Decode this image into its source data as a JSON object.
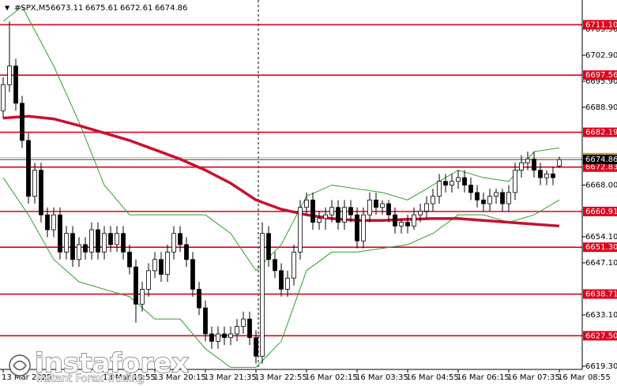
{
  "chart_data": {
    "type": "candlestick",
    "header": {
      "symbol": "#SPX,M5",
      "ohlc": [
        "6673.11",
        "6675.61",
        "6672.61",
        "6674.86"
      ]
    },
    "watermark": {
      "brand": "instaforex",
      "tagline": "Instant Forex Trading"
    },
    "categories": [
      "13 Mar 2025",
      null,
      null,
      null,
      null,
      null,
      null,
      null,
      null,
      null,
      null,
      null,
      null,
      null,
      null,
      null,
      "13 Mar 18:55",
      null,
      null,
      null,
      null,
      null,
      null,
      null,
      "13 Mar 20:15",
      null,
      null,
      null,
      null,
      null,
      null,
      null,
      "13 Mar 21:35",
      null,
      null,
      null,
      null,
      null,
      null,
      null,
      "13 Mar 22:55",
      null,
      null,
      null,
      null,
      null,
      null,
      null,
      "16 Mar 02:15",
      null,
      null,
      null,
      null,
      null,
      null,
      null,
      "16 Mar 03:35",
      null,
      null,
      null,
      null,
      null,
      null,
      null,
      "16 Mar 04:55",
      null,
      null,
      null,
      null,
      null,
      null,
      null,
      "16 Mar 06:15",
      null,
      null,
      null,
      null,
      null,
      null,
      null,
      "16 Mar 07:35",
      null,
      null,
      null,
      null,
      null,
      null,
      null,
      "16 Mar 08:55"
    ],
    "candles": [
      [
        6688,
        6697,
        6686,
        6695
      ],
      [
        6695,
        6712,
        6693,
        6700
      ],
      [
        6700,
        6702,
        6688,
        6690
      ],
      [
        6690,
        6692,
        6678,
        6680
      ],
      [
        6680,
        6682,
        6663,
        6665
      ],
      [
        6665,
        6674,
        6663,
        6672
      ],
      [
        6672,
        6674,
        6658,
        6660
      ],
      [
        6660,
        6662,
        6654,
        6656
      ],
      [
        6656,
        6662,
        6654,
        6660
      ],
      [
        6660,
        6662,
        6648,
        6650
      ],
      [
        6650,
        6657,
        6648,
        6655
      ],
      [
        6655,
        6657,
        6646,
        6648
      ],
      [
        6648,
        6654,
        6646,
        6652
      ],
      [
        6652,
        6654,
        6648,
        6650
      ],
      [
        6650,
        6658,
        6648,
        6656
      ],
      [
        6656,
        6658,
        6648,
        6650
      ],
      [
        6650,
        6657,
        6648,
        6655
      ],
      [
        6655,
        6657,
        6650,
        6652
      ],
      [
        6652,
        6657,
        6650,
        6655
      ],
      [
        6655,
        6657,
        6648,
        6650
      ],
      [
        6650,
        6652,
        6644,
        6646
      ],
      [
        6646,
        6648,
        6631,
        6636
      ],
      [
        6636,
        6642,
        6634,
        6640
      ],
      [
        6640,
        6647,
        6638,
        6645
      ],
      [
        6645,
        6650,
        6643,
        6648
      ],
      [
        6648,
        6650,
        6642,
        6644
      ],
      [
        6644,
        6652,
        6642,
        6650
      ],
      [
        6650,
        6657,
        6648,
        6655
      ],
      [
        6655,
        6657,
        6650,
        6652
      ],
      [
        6652,
        6654,
        6646,
        6648
      ],
      [
        6648,
        6650,
        6638,
        6640
      ],
      [
        6640,
        6642,
        6633,
        6635
      ],
      [
        6635,
        6637,
        6626,
        6628
      ],
      [
        6628,
        6630,
        6624,
        6626
      ],
      [
        6626,
        6630,
        6624,
        6628
      ],
      [
        6628,
        6630,
        6625,
        6627
      ],
      [
        6627,
        6630,
        6625,
        6628
      ],
      [
        6628,
        6632,
        6626,
        6630
      ],
      [
        6630,
        6634,
        6628,
        6632
      ],
      [
        6632,
        6634,
        6625,
        6627
      ],
      [
        6627,
        6629,
        6620,
        6622
      ],
      [
        6622,
        6658,
        6620,
        6655
      ],
      [
        6655,
        6657,
        6646,
        6648
      ],
      [
        6648,
        6650,
        6643,
        6645
      ],
      [
        6645,
        6647,
        6638,
        6640
      ],
      [
        6640,
        6645,
        6638,
        6643
      ],
      [
        6643,
        6652,
        6641,
        6650
      ],
      [
        6650,
        6664,
        6648,
        6662
      ],
      [
        6662,
        6666,
        6660,
        6664
      ],
      [
        6664,
        6666,
        6656,
        6658
      ],
      [
        6658,
        6661,
        6656,
        6659
      ],
      [
        6659,
        6662,
        6656,
        6660
      ],
      [
        6660,
        6664,
        6658,
        6662
      ],
      [
        6662,
        6664,
        6656,
        6658
      ],
      [
        6658,
        6664,
        6656,
        6662
      ],
      [
        6662,
        6664,
        6658,
        6660
      ],
      [
        6660,
        6662,
        6651,
        6653
      ],
      [
        6653,
        6662,
        6651,
        6660
      ],
      [
        6660,
        6666,
        6658,
        6664
      ],
      [
        6664,
        6666,
        6660,
        6662
      ],
      [
        6662,
        6664,
        6660,
        6663
      ],
      [
        6663,
        6664,
        6658,
        6660
      ],
      [
        6660,
        6662,
        6655,
        6657
      ],
      [
        6657,
        6659,
        6655,
        6658
      ],
      [
        6658,
        6660,
        6655,
        6657
      ],
      [
        6657,
        6662,
        6656,
        6660
      ],
      [
        6660,
        6663,
        6658,
        6661
      ],
      [
        6661,
        6665,
        6659,
        6663
      ],
      [
        6663,
        6667,
        6661,
        6665
      ],
      [
        6665,
        6671,
        6663,
        6669
      ],
      [
        6669,
        6671,
        6666,
        6668
      ],
      [
        6668,
        6671,
        6666,
        6669
      ],
      [
        6669,
        6672,
        6667,
        6670
      ],
      [
        6670,
        6672,
        6666,
        6668
      ],
      [
        6668,
        6670,
        6664,
        6666
      ],
      [
        6666,
        6668,
        6662,
        6664
      ],
      [
        6664,
        6666,
        6661,
        6663
      ],
      [
        6663,
        6667,
        6661,
        6665
      ],
      [
        6665,
        6667,
        6663,
        6666
      ],
      [
        6666,
        6667,
        6661,
        6663
      ],
      [
        6663,
        6668,
        6661,
        6666
      ],
      [
        6666,
        6674,
        6664,
        6672
      ],
      [
        6672,
        6676,
        6670,
        6674
      ],
      [
        6674,
        6677,
        6672,
        6675
      ],
      [
        6675,
        6677,
        6670,
        6672
      ],
      [
        6672,
        6674,
        6668,
        6670
      ],
      [
        6670,
        6672,
        6668,
        6671
      ],
      [
        6671,
        6673,
        6668,
        6670
      ],
      [
        6673.11,
        6675.61,
        6672.61,
        6674.86
      ]
    ],
    "up_color": "#ffffff",
    "down_color": "#000000",
    "wick_color": "#000000",
    "indicators": [
      {
        "color": "#2e9e2e",
        "width": 1,
        "x": [
          0,
          3,
          8,
          12,
          16,
          20,
          24,
          28,
          32,
          36,
          40,
          44,
          48,
          52,
          56,
          60,
          64,
          68,
          72,
          76,
          80,
          84,
          88
        ],
        "values": [
          6712,
          6716,
          6700,
          6685,
          6668,
          6660,
          6660,
          6660,
          6660,
          6655,
          6645,
          6652,
          6665,
          6668,
          6667,
          6666,
          6664,
          6668,
          6672,
          6670,
          6669,
          6677,
          6678
        ]
      },
      {
        "color": "#2e9e2e",
        "width": 1,
        "x": [
          0,
          4,
          8,
          12,
          16,
          20,
          24,
          28,
          32,
          36,
          40,
          44,
          48,
          52,
          56,
          60,
          64,
          68,
          72,
          76,
          80,
          84,
          88
        ],
        "values": [
          6670,
          6660,
          6648,
          6642,
          6640,
          6638,
          6632,
          6632,
          6624,
          6619,
          6619,
          6626,
          6645,
          6650,
          6650,
          6651,
          6652,
          6655,
          6660,
          6660,
          6658,
          6660,
          6664
        ]
      },
      {
        "color": "#c8102e",
        "width": 3.5,
        "x": [
          0,
          4,
          8,
          12,
          16,
          20,
          24,
          28,
          32,
          36,
          40,
          44,
          48,
          52,
          56,
          60,
          64,
          68,
          72,
          76,
          80,
          84,
          88
        ],
        "values": [
          6686,
          6686.5,
          6685.8,
          6684,
          6682,
          6680,
          6677.5,
          6675,
          6672,
          6668.5,
          6664,
          6661.5,
          6660,
          6659,
          6658.5,
          6658.5,
          6658.8,
          6659,
          6659,
          6658.5,
          6658,
          6657.5,
          6657
        ]
      }
    ],
    "levels": [
      {
        "value": 6711.1,
        "label": "6711.10"
      },
      {
        "value": 6697.56,
        "label": "6697.56"
      },
      {
        "value": 6682.19,
        "label": "6682.19"
      },
      {
        "value": 6672.83,
        "label": "6672.83"
      },
      {
        "value": 6660.91,
        "label": "6660.91"
      },
      {
        "value": 6651.3,
        "label": "6651.30"
      },
      {
        "value": 6638.71,
        "label": "6638.71"
      },
      {
        "value": 6627.5,
        "label": "6627.50"
      }
    ],
    "level_color": "#e0001b",
    "price_tags": [
      {
        "value": 6675.36,
        "label": "6675.36",
        "color": "#c99a2e"
      },
      {
        "value": 6674.86,
        "label": "6674.86",
        "color": "#000000"
      }
    ],
    "ylim": [
      6618.45,
      6717.75
    ],
    "yticks": [
      {
        "value": 6709.9,
        "label": "6709.90"
      },
      {
        "value": 6702.9,
        "label": "6702.90"
      },
      {
        "value": 6695.9,
        "label": "6695.90"
      },
      {
        "value": 6688.9,
        "label": "6688.90"
      },
      {
        "value": 6668,
        "label": "6668.00"
      },
      {
        "value": 6654.1,
        "label": "6654.10"
      },
      {
        "value": 6647.1,
        "label": "6647.10"
      },
      {
        "value": 6633.1,
        "label": "6633.10"
      },
      {
        "value": 6619.3,
        "label": "6619.30"
      }
    ]
  }
}
